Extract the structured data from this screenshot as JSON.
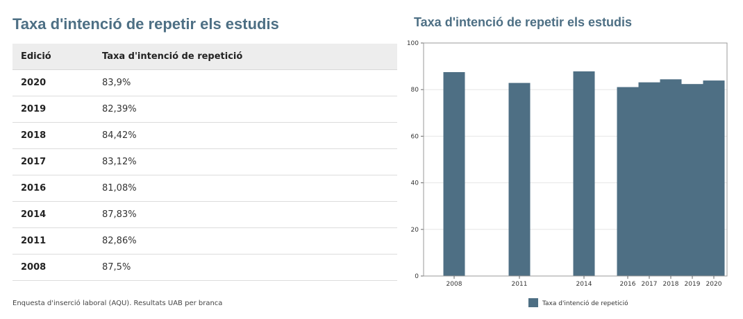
{
  "left": {
    "title": "Taxa d'intenció de repetir els estudis",
    "table": {
      "headers": [
        "Edició",
        "Taxa d'intenció de repetició"
      ],
      "rows": [
        {
          "year": "2020",
          "value": "83,9%"
        },
        {
          "year": "2019",
          "value": "82,39%"
        },
        {
          "year": "2018",
          "value": "84,42%"
        },
        {
          "year": "2017",
          "value": "83,12%"
        },
        {
          "year": "2016",
          "value": "81,08%"
        },
        {
          "year": "2014",
          "value": "87,83%"
        },
        {
          "year": "2011",
          "value": "82,86%"
        },
        {
          "year": "2008",
          "value": "87,5%"
        }
      ]
    },
    "caption": "Enquesta d'inserció laboral (AQU). Resultats UAB per branca"
  },
  "right": {
    "title": "Taxa d'intenció de repetir els estudis"
  },
  "chart_data": {
    "type": "bar",
    "categories": [
      "2008",
      "2011",
      "2014",
      "2016",
      "2017",
      "2018",
      "2019",
      "2020"
    ],
    "series": [
      {
        "name": "Taxa d'intenció de repetició",
        "values": [
          87.5,
          82.86,
          87.83,
          81.08,
          83.12,
          84.42,
          82.39,
          83.9
        ]
      }
    ],
    "ylim": [
      0,
      100
    ],
    "yticks": [
      0,
      20,
      40,
      60,
      80,
      100
    ],
    "grid": true,
    "legend": "bottom",
    "bar_color": "#4e6f84"
  }
}
